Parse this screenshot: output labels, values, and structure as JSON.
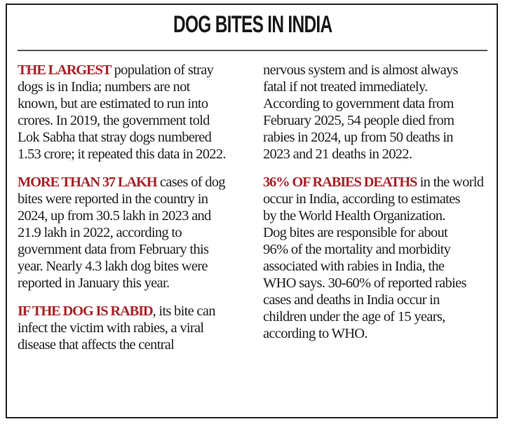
{
  "title": "DOG BITES IN INDIA",
  "accent_color": "#a8242a",
  "left_column": [
    {
      "lead": "THE LARGEST",
      "lines": [
        " population of stray",
        "dogs is in India; numbers are not",
        "known, but are estimated to run into",
        "crores. In 2019, the government told",
        "Lok Sabha that stray dogs numbered",
        "1.53 crore; it repeated this data in 2022."
      ]
    },
    {
      "lead": "MORE THAN 37 LAKH",
      "lines": [
        " cases of dog",
        "bites were reported in the country in",
        "2024, up from 30.5 lakh in 2023 and",
        "21.9 lakh in 2022, according to",
        "government data from February this",
        "year. Nearly 4.3 lakh dog bites were",
        "reported in January this year."
      ]
    },
    {
      "lead": "IF THE DOG IS RABID",
      "lines": [
        ", its bite can",
        "infect the victim with rabies, a viral",
        "disease that affects the central"
      ]
    }
  ],
  "right_column": [
    {
      "lead": "",
      "lines": [
        "nervous system and is almost always",
        "fatal if not treated immediately.",
        "According to government data from",
        "February 2025, 54 people died from",
        "rabies in 2024, up from 50 deaths in",
        "2023 and 21 deaths in 2022."
      ]
    },
    {
      "lead": "36% OF RABIES DEATHS",
      "lines": [
        " in the world",
        "occur in India, according to estimates",
        "by the World Health Organization.",
        "Dog bites are responsible for about",
        "96% of the mortality and morbidity",
        "associated with rabies in India, the",
        "WHO says. 30-60% of reported rabies",
        "cases and deaths in India occur in",
        "children under the age of 15 years,",
        "according to WHO."
      ]
    }
  ]
}
